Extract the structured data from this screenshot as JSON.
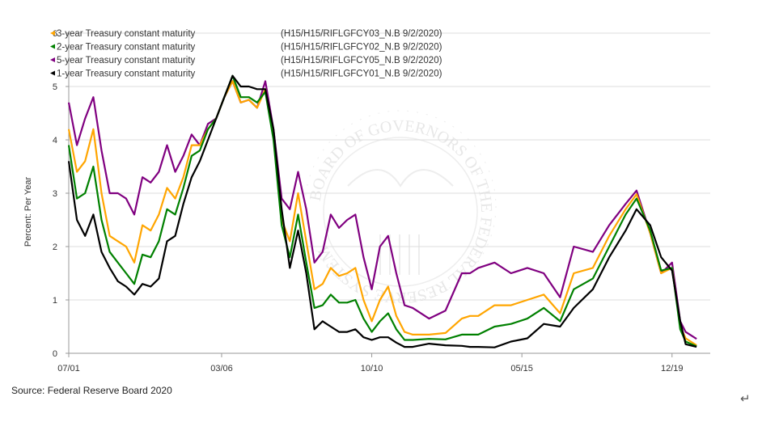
{
  "chart_data": {
    "type": "line",
    "title": "",
    "xlabel": "",
    "ylabel": "Percent: Per Year",
    "ylim": [
      0,
      6
    ],
    "xlim": [
      "2001-07",
      "2021-02"
    ],
    "yticks": [
      "0",
      "1",
      "2",
      "3",
      "4",
      "5",
      "6"
    ],
    "xticks": [
      {
        "label": "07/01",
        "date": "2001-07"
      },
      {
        "label": "03/06",
        "date": "2006-03"
      },
      {
        "label": "10/10",
        "date": "2010-10"
      },
      {
        "label": "05/15",
        "date": "2015-05"
      },
      {
        "label": "12/19",
        "date": "2019-12"
      }
    ],
    "grid": "horizontal",
    "legend_placement": "top-left",
    "x": [
      "2001-07",
      "2001-10",
      "2002-01",
      "2002-04",
      "2002-07",
      "2002-10",
      "2003-01",
      "2003-04",
      "2003-07",
      "2003-10",
      "2004-01",
      "2004-04",
      "2004-07",
      "2004-10",
      "2005-01",
      "2005-04",
      "2005-07",
      "2005-10",
      "2006-01",
      "2006-04",
      "2006-07",
      "2006-10",
      "2007-01",
      "2007-04",
      "2007-07",
      "2007-10",
      "2008-01",
      "2008-04",
      "2008-07",
      "2008-10",
      "2009-01",
      "2009-04",
      "2009-07",
      "2009-10",
      "2010-01",
      "2010-04",
      "2010-07",
      "2010-10",
      "2011-01",
      "2011-04",
      "2011-07",
      "2011-10",
      "2012-01",
      "2012-07",
      "2013-01",
      "2013-07",
      "2013-10",
      "2014-01",
      "2014-07",
      "2015-01",
      "2015-07",
      "2016-01",
      "2016-07",
      "2016-12",
      "2017-07",
      "2018-01",
      "2018-07",
      "2018-11",
      "2019-04",
      "2019-08",
      "2019-12",
      "2020-03",
      "2020-05",
      "2020-09"
    ],
    "series": [
      {
        "name": "5-year Treasury constant maturity",
        "code": "(H15/H15/RIFLGFCY05_N.B 9/2/2020)",
        "color": "#800080",
        "values": [
          4.7,
          3.9,
          4.4,
          4.8,
          3.8,
          3.0,
          3.0,
          2.9,
          2.6,
          3.3,
          3.2,
          3.4,
          3.9,
          3.4,
          3.7,
          4.1,
          3.9,
          4.3,
          4.4,
          4.8,
          5.1,
          4.7,
          4.75,
          4.6,
          5.1,
          4.2,
          2.9,
          2.7,
          3.4,
          2.7,
          1.7,
          1.9,
          2.6,
          2.35,
          2.5,
          2.6,
          1.8,
          1.2,
          2.0,
          2.2,
          1.5,
          0.9,
          0.85,
          0.65,
          0.8,
          1.5,
          1.5,
          1.6,
          1.7,
          1.5,
          1.6,
          1.5,
          1.05,
          2.0,
          1.9,
          2.4,
          2.8,
          3.05,
          2.25,
          1.5,
          1.7,
          0.6,
          0.4,
          0.27
        ]
      },
      {
        "name": "3-year Treasury constant maturity",
        "code": "(H15/H15/RIFLGFCY03_N.B 9/2/2020)",
        "color": "#ffa500",
        "values": [
          4.2,
          3.4,
          3.6,
          4.2,
          3.0,
          2.2,
          2.1,
          2.0,
          1.7,
          2.4,
          2.3,
          2.6,
          3.1,
          2.9,
          3.3,
          3.9,
          3.9,
          4.2,
          4.4,
          4.8,
          5.1,
          4.7,
          4.75,
          4.6,
          4.95,
          4.05,
          2.5,
          2.1,
          3.0,
          2.1,
          1.2,
          1.3,
          1.6,
          1.45,
          1.5,
          1.6,
          1.0,
          0.6,
          1.0,
          1.25,
          0.7,
          0.4,
          0.35,
          0.35,
          0.38,
          0.65,
          0.7,
          0.7,
          0.9,
          0.9,
          1.0,
          1.1,
          0.75,
          1.5,
          1.6,
          2.2,
          2.7,
          2.98,
          2.25,
          1.5,
          1.6,
          0.5,
          0.28,
          0.15
        ]
      },
      {
        "name": "2-year Treasury constant maturity",
        "code": "(H15/H15/RIFLGFCY02_N.B 9/2/2020)",
        "color": "#008000",
        "values": [
          3.9,
          2.9,
          3.0,
          3.5,
          2.5,
          1.9,
          1.7,
          1.5,
          1.3,
          1.85,
          1.8,
          2.1,
          2.7,
          2.6,
          3.1,
          3.7,
          3.8,
          4.2,
          4.4,
          4.8,
          5.2,
          4.8,
          4.8,
          4.7,
          4.9,
          4.0,
          2.4,
          1.8,
          2.6,
          1.7,
          0.85,
          0.9,
          1.1,
          0.95,
          0.95,
          1.0,
          0.65,
          0.4,
          0.6,
          0.75,
          0.45,
          0.25,
          0.25,
          0.27,
          0.26,
          0.35,
          0.35,
          0.35,
          0.5,
          0.55,
          0.65,
          0.85,
          0.6,
          1.2,
          1.4,
          2.0,
          2.6,
          2.9,
          2.3,
          1.55,
          1.6,
          0.45,
          0.22,
          0.13
        ]
      },
      {
        "name": "1-year Treasury constant maturity",
        "code": "(H15/H15/RIFLGFCY01_N.B 9/2/2020)",
        "color": "#000000",
        "values": [
          3.6,
          2.5,
          2.2,
          2.6,
          1.9,
          1.6,
          1.35,
          1.25,
          1.1,
          1.3,
          1.25,
          1.4,
          2.1,
          2.2,
          2.8,
          3.3,
          3.6,
          4.0,
          4.4,
          4.8,
          5.2,
          5.0,
          5.0,
          4.95,
          4.95,
          4.2,
          2.7,
          1.6,
          2.3,
          1.5,
          0.45,
          0.6,
          0.5,
          0.4,
          0.4,
          0.45,
          0.3,
          0.25,
          0.3,
          0.3,
          0.2,
          0.12,
          0.12,
          0.18,
          0.15,
          0.14,
          0.12,
          0.12,
          0.11,
          0.22,
          0.28,
          0.55,
          0.5,
          0.85,
          1.2,
          1.8,
          2.3,
          2.7,
          2.4,
          1.8,
          1.55,
          0.6,
          0.17,
          0.12
        ]
      }
    ],
    "legend_order": [
      1,
      2,
      0,
      3
    ],
    "watermark": "BOARD OF GOVERNORS OF THE FEDERAL RESERVE SYSTEM"
  },
  "source": "Source: Federal Reserve Board 2020",
  "return_symbol": "↵"
}
